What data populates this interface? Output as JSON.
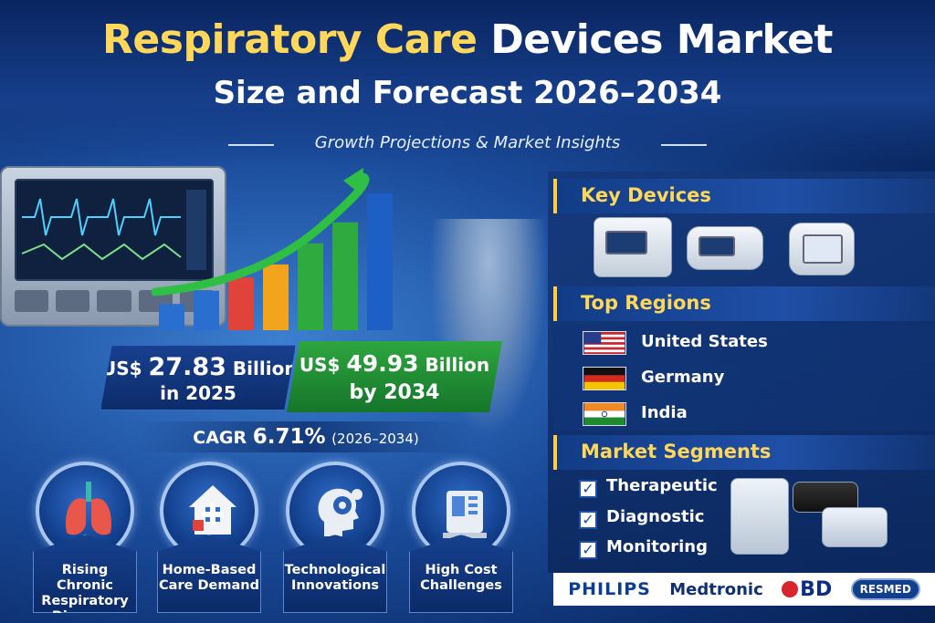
{
  "title": {
    "part1": "Respiratory Care",
    "part2": "Devices Market",
    "line2": "Size and Forecast 2026–2034",
    "tagline": "Growth Projections & Market Insights"
  },
  "values": {
    "v2025_prefix": "US$",
    "v2025_amount": "27.83",
    "v2025_unit": "Billion",
    "v2025_year": "in 2025",
    "v2034_prefix": "US$",
    "v2034_amount": "49.93",
    "v2034_unit": "Billion",
    "v2034_year": "by 2034",
    "cagr_label": "CAGR",
    "cagr_value": "6.71%",
    "cagr_period": "(2026–2034)"
  },
  "growth_bars": [
    1,
    1.5,
    2,
    2.5,
    3.3,
    4.1,
    5.2
  ],
  "bar_colors": [
    "#2a6fd0",
    "#2a6fd0",
    "#e0433a",
    "#f2a51c",
    "#2eaa3e",
    "#2eaa3e",
    "#1d5fc4"
  ],
  "drivers": [
    {
      "line1": "Rising Chronic",
      "line2": "Respiratory",
      "line3": "Diseases",
      "icon": "lungs-icon"
    },
    {
      "line1": "Home-Based",
      "line2": "Care Demand",
      "icon": "home-care-icon"
    },
    {
      "line1": "Technological",
      "line2": "Innovations",
      "icon": "head-gear-icon"
    },
    {
      "line1": "High Cost",
      "line2": "Challenges",
      "icon": "medical-device-icon"
    }
  ],
  "sections": {
    "devices": "Key Devices",
    "regions": "Top Regions",
    "segments": "Market Segments"
  },
  "regions": [
    {
      "name": "United States"
    },
    {
      "name": "Germany"
    },
    {
      "name": "India"
    }
  ],
  "segments": [
    "Therapeutic",
    "Diagnostic",
    "Monitoring"
  ],
  "brands": {
    "b1": "PHILIPS",
    "b2": "Medtronic",
    "b3": "BD",
    "b4": "RESMED"
  },
  "colors": {
    "accent": "#ffd75a",
    "navy": "#0b2a66",
    "green": "#2ea63f"
  }
}
